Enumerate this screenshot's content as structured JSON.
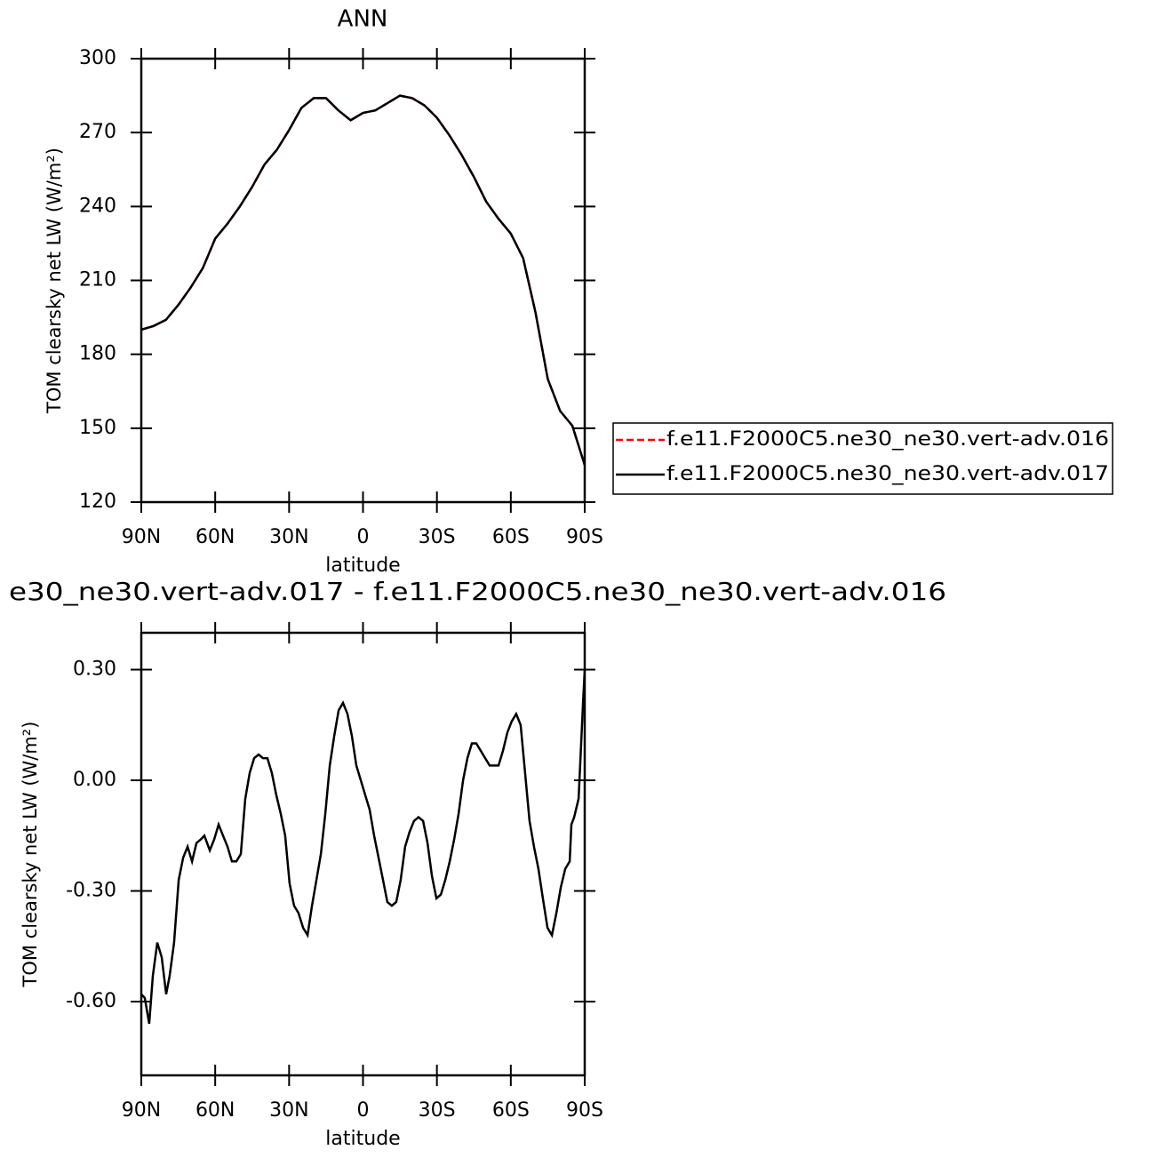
{
  "chart_data": [
    {
      "type": "line",
      "title": "ANN",
      "xlabel": "latitude",
      "ylabel": "TOM clearsky net LW (W/m²)",
      "x": [
        90,
        85,
        80,
        75,
        70,
        65,
        60,
        55,
        50,
        45,
        40,
        35,
        30,
        25,
        20,
        15,
        10,
        5,
        0,
        -5,
        -10,
        -15,
        -20,
        -25,
        -30,
        -35,
        -40,
        -45,
        -50,
        -55,
        -60,
        -65,
        -70,
        -75,
        -80,
        -85,
        -90
      ],
      "series": [
        {
          "name": "f.e11.F2000C5.ne30_ne30.vert-adv.016",
          "color": "#ff0000",
          "linestyle": "dashed",
          "values": [
            190,
            191.5,
            194,
            200,
            207,
            215,
            227,
            233,
            240,
            248,
            257,
            263,
            271,
            280,
            284,
            284,
            279,
            275,
            278,
            279,
            282,
            285,
            284,
            281,
            276,
            269,
            261,
            252,
            242,
            235,
            229,
            219,
            197,
            170,
            157,
            151,
            135
          ]
        },
        {
          "name": "f.e11.F2000C5.ne30_ne30.vert-adv.017",
          "color": "#000000",
          "linestyle": "solid",
          "values": [
            190,
            191.5,
            194,
            200,
            207,
            215,
            227,
            233,
            240,
            248,
            257,
            263,
            271,
            280,
            284,
            284,
            279,
            275,
            278,
            279,
            282,
            285,
            284,
            281,
            276,
            269,
            261,
            252,
            242,
            235,
            229,
            219,
            197,
            170,
            157,
            151,
            135
          ]
        }
      ],
      "xlim": [
        90,
        -90
      ],
      "xticks": [
        {
          "value": 90,
          "label": "90N"
        },
        {
          "value": 60,
          "label": "60N"
        },
        {
          "value": 30,
          "label": "30N"
        },
        0,
        {
          "value": -30,
          "label": "30S"
        },
        {
          "value": -60,
          "label": "60S"
        },
        {
          "value": -90,
          "label": "90S"
        }
      ],
      "ylim": [
        120,
        300
      ],
      "yticks": [
        120,
        150,
        180,
        210,
        240,
        270,
        300
      ],
      "legend": "right"
    },
    {
      "type": "line",
      "title": "e30_ne30.vert-adv.017 - f.e11.F2000C5.ne30_ne30.vert-adv.016",
      "xlabel": "latitude",
      "ylabel": "TOM clearsky net LW (W/m²)",
      "x": [
        90,
        88.6,
        86.8,
        85.3,
        83.5,
        81.7,
        79.9,
        78.5,
        76.7,
        74.8,
        73.0,
        71.2,
        69.4,
        67.6,
        65.8,
        64.4,
        62.2,
        60.4,
        58.6,
        56.8,
        55.0,
        53.2,
        51.4,
        49.6,
        47.8,
        46.0,
        44.2,
        42.4,
        40.6,
        38.8,
        37.0,
        35.2,
        33.4,
        31.6,
        29.8,
        28.0,
        26.2,
        24.3,
        22.5,
        20.7,
        18.9,
        17.1,
        15.3,
        13.5,
        11.7,
        9.9,
        8.1,
        6.3,
        4.5,
        2.7,
        0.9,
        -0.9,
        -2.7,
        -4.5,
        -6.3,
        -8.1,
        -9.9,
        -11.7,
        -13.5,
        -15.3,
        -17.1,
        -18.9,
        -20.7,
        -22.5,
        -24.4,
        -26.2,
        -28.0,
        -29.8,
        -31.6,
        -33.4,
        -35.2,
        -37.0,
        -38.8,
        -40.6,
        -42.4,
        -44.2,
        -46.0,
        -47.8,
        -49.6,
        -51.4,
        -53.2,
        -55.0,
        -56.8,
        -58.6,
        -60.4,
        -62.2,
        -64.0,
        -65.8,
        -67.6,
        -69.4,
        -71.2,
        -73.0,
        -74.9,
        -76.7,
        -78.5,
        -80.3,
        -82.1,
        -83.9,
        -84.6,
        -85.7,
        -87.5,
        -89.3,
        -90
      ],
      "series": [
        {
          "color": "#000000",
          "linestyle": "solid",
          "values": [
            -0.58,
            -0.59,
            -0.66,
            -0.53,
            -0.44,
            -0.48,
            -0.58,
            -0.53,
            -0.44,
            -0.27,
            -0.21,
            -0.18,
            -0.22,
            -0.17,
            -0.16,
            -0.15,
            -0.19,
            -0.16,
            -0.12,
            -0.15,
            -0.18,
            -0.22,
            -0.22,
            -0.2,
            -0.05,
            0.02,
            0.06,
            0.07,
            0.06,
            0.06,
            0.02,
            -0.04,
            -0.09,
            -0.15,
            -0.28,
            -0.34,
            -0.36,
            -0.4,
            -0.42,
            -0.34,
            -0.27,
            -0.2,
            -0.09,
            0.04,
            0.12,
            0.19,
            0.21,
            0.18,
            0.12,
            0.04,
            0,
            -0.04,
            -0.08,
            -0.15,
            -0.21,
            -0.27,
            -0.33,
            -0.34,
            -0.33,
            -0.27,
            -0.18,
            -0.14,
            -0.11,
            -0.1,
            -0.11,
            -0.17,
            -0.26,
            -0.32,
            -0.31,
            -0.27,
            -0.22,
            -0.16,
            -0.09,
            0,
            0.06,
            0.1,
            0.1,
            0.08,
            0.06,
            0.04,
            0.04,
            0.04,
            0.08,
            0.13,
            0.16,
            0.18,
            0.15,
            0.02,
            -0.11,
            -0.18,
            -0.24,
            -0.32,
            -0.4,
            -0.42,
            -0.36,
            -0.29,
            -0.24,
            -0.22,
            -0.12,
            -0.1,
            -0.05,
            0.21,
            0.3
          ]
        }
      ],
      "xlim": [
        90,
        -90
      ],
      "xticks": [
        {
          "value": 90,
          "label": "90N"
        },
        {
          "value": 60,
          "label": "60N"
        },
        {
          "value": 30,
          "label": "30N"
        },
        0,
        {
          "value": -30,
          "label": "30S"
        },
        {
          "value": -60,
          "label": "60S"
        },
        {
          "value": -90,
          "label": "90S"
        }
      ],
      "ylim": [
        -0.8,
        0.4
      ],
      "yticks": [
        {
          "value": -0.6,
          "label": "-0.60"
        },
        {
          "value": -0.3,
          "label": "-0.30"
        },
        {
          "value": 0,
          "label": "0.00"
        },
        {
          "value": 0.3,
          "label": "0.30"
        }
      ]
    }
  ]
}
